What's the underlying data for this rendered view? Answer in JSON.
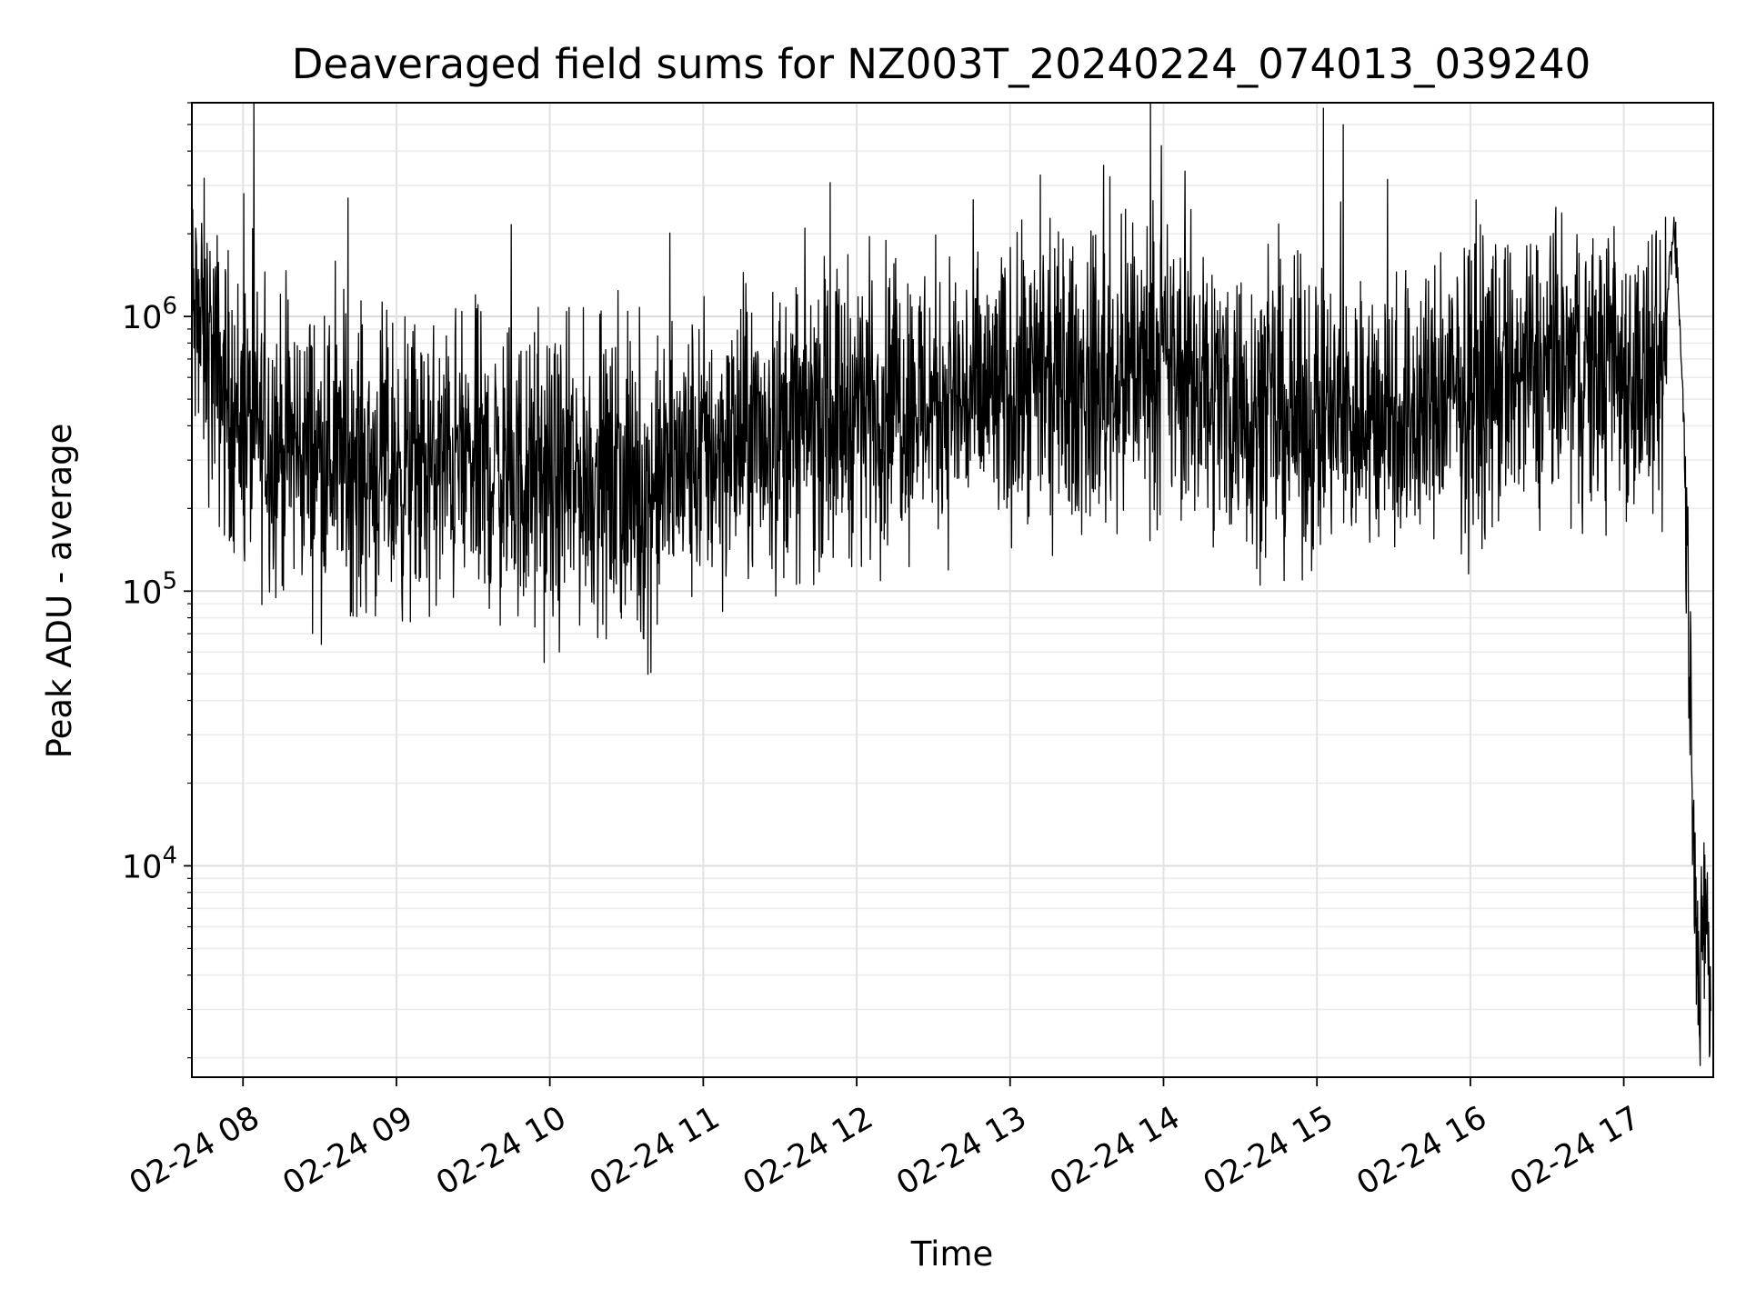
{
  "chart_data": {
    "type": "line",
    "title": "Deaveraged field sums for NZ003T_20240224_074013_039240",
    "xlabel": "Time",
    "ylabel": "Peak ADU - average",
    "x_scale": "time",
    "y_scale": "log",
    "xlim": [
      "2024-02-24 07:40",
      "2024-02-24 17:35"
    ],
    "ylim": [
      1700,
      6000000
    ],
    "grid": true,
    "x_ticks": [
      {
        "value": "2024-02-24 08:00",
        "label": "02-24 08"
      },
      {
        "value": "2024-02-24 09:00",
        "label": "02-24 09"
      },
      {
        "value": "2024-02-24 10:00",
        "label": "02-24 10"
      },
      {
        "value": "2024-02-24 11:00",
        "label": "02-24 11"
      },
      {
        "value": "2024-02-24 12:00",
        "label": "02-24 12"
      },
      {
        "value": "2024-02-24 13:00",
        "label": "02-24 13"
      },
      {
        "value": "2024-02-24 14:00",
        "label": "02-24 14"
      },
      {
        "value": "2024-02-24 15:00",
        "label": "02-24 15"
      },
      {
        "value": "2024-02-24 16:00",
        "label": "02-24 16"
      },
      {
        "value": "2024-02-24 17:00",
        "label": "02-24 17"
      }
    ],
    "y_ticks": [
      {
        "value": 10000,
        "base": "10",
        "exp": "4"
      },
      {
        "value": 100000,
        "base": "10",
        "exp": "5"
      },
      {
        "value": 1000000,
        "base": "10",
        "exp": "6"
      }
    ],
    "line_color": "#000000",
    "series": [
      {
        "x": [
          "2024-02-24 07:40",
          "2024-02-24 07:42",
          "2024-02-24 07:45",
          "2024-02-24 07:50",
          "2024-02-24 08:00",
          "2024-02-24 08:15",
          "2024-02-24 08:30",
          "2024-02-24 08:45",
          "2024-02-24 09:00",
          "2024-02-24 09:15",
          "2024-02-24 09:23",
          "2024-02-24 09:30",
          "2024-02-24 09:45",
          "2024-02-24 10:00",
          "2024-02-24 10:15",
          "2024-02-24 10:30",
          "2024-02-24 10:37",
          "2024-02-24 10:45",
          "2024-02-24 11:00",
          "2024-02-24 11:15",
          "2024-02-24 11:30",
          "2024-02-24 11:45",
          "2024-02-24 12:00",
          "2024-02-24 12:15",
          "2024-02-24 12:30",
          "2024-02-24 12:45",
          "2024-02-24 13:00",
          "2024-02-24 13:15",
          "2024-02-24 13:30",
          "2024-02-24 13:45",
          "2024-02-24 13:55",
          "2024-02-24 14:00",
          "2024-02-24 14:15",
          "2024-02-24 14:30",
          "2024-02-24 14:45",
          "2024-02-24 15:00",
          "2024-02-24 15:15",
          "2024-02-24 15:30",
          "2024-02-24 15:37",
          "2024-02-24 15:45",
          "2024-02-24 16:00",
          "2024-02-24 16:15",
          "2024-02-24 16:30",
          "2024-02-24 16:45",
          "2024-02-24 17:00",
          "2024-02-24 17:10",
          "2024-02-24 17:15",
          "2024-02-24 17:18",
          "2024-02-24 17:20",
          "2024-02-24 17:23",
          "2024-02-24 17:26",
          "2024-02-24 17:28",
          "2024-02-24 17:30",
          "2024-02-24 17:32",
          "2024-02-24 17:34"
        ],
        "y": [
          1000000,
          900000,
          850000,
          600000,
          400000,
          340000,
          320000,
          290000,
          280000,
          270000,
          300000,
          290000,
          260000,
          240000,
          260000,
          230000,
          210000,
          260000,
          320000,
          350000,
          380000,
          430000,
          480000,
          500000,
          510000,
          500000,
          520000,
          540000,
          560000,
          600000,
          700000,
          650000,
          560000,
          480000,
          430000,
          420000,
          430000,
          440000,
          450000,
          470000,
          540000,
          600000,
          620000,
          640000,
          640000,
          580000,
          500000,
          1600000,
          2200000,
          600000,
          50000,
          8000,
          3000,
          9000,
          2500
        ]
      }
    ]
  }
}
